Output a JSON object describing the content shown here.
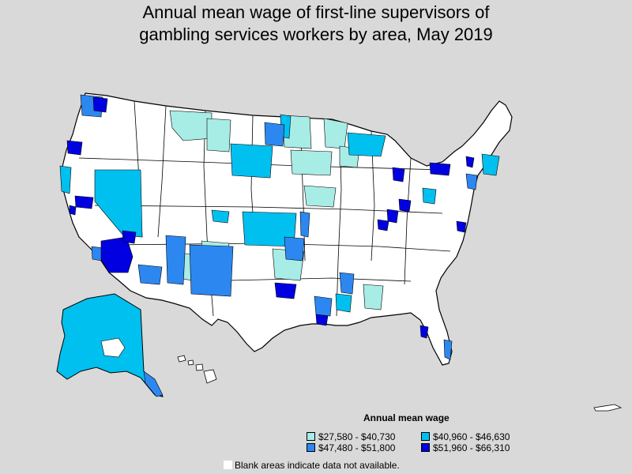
{
  "title_line1": "Annual mean wage of first-line supervisors of",
  "title_line2": "gambling services workers by area, May 2019",
  "legend": {
    "title": "Annual mean wage",
    "items": [
      {
        "label": "$27,580 - $40,730",
        "color": "#a8ece6"
      },
      {
        "label": "$40,960 - $46,630",
        "color": "#00c0f0"
      },
      {
        "label": "$47,480 - $51,800",
        "color": "#2c88f0"
      },
      {
        "label": "$51,960 - $66,310",
        "color": "#0000e0"
      }
    ]
  },
  "note": "Blank areas indicate data not available.",
  "colors": {
    "background": "#d9d9d9",
    "no_data": "#ffffff",
    "border": "#000000"
  }
}
